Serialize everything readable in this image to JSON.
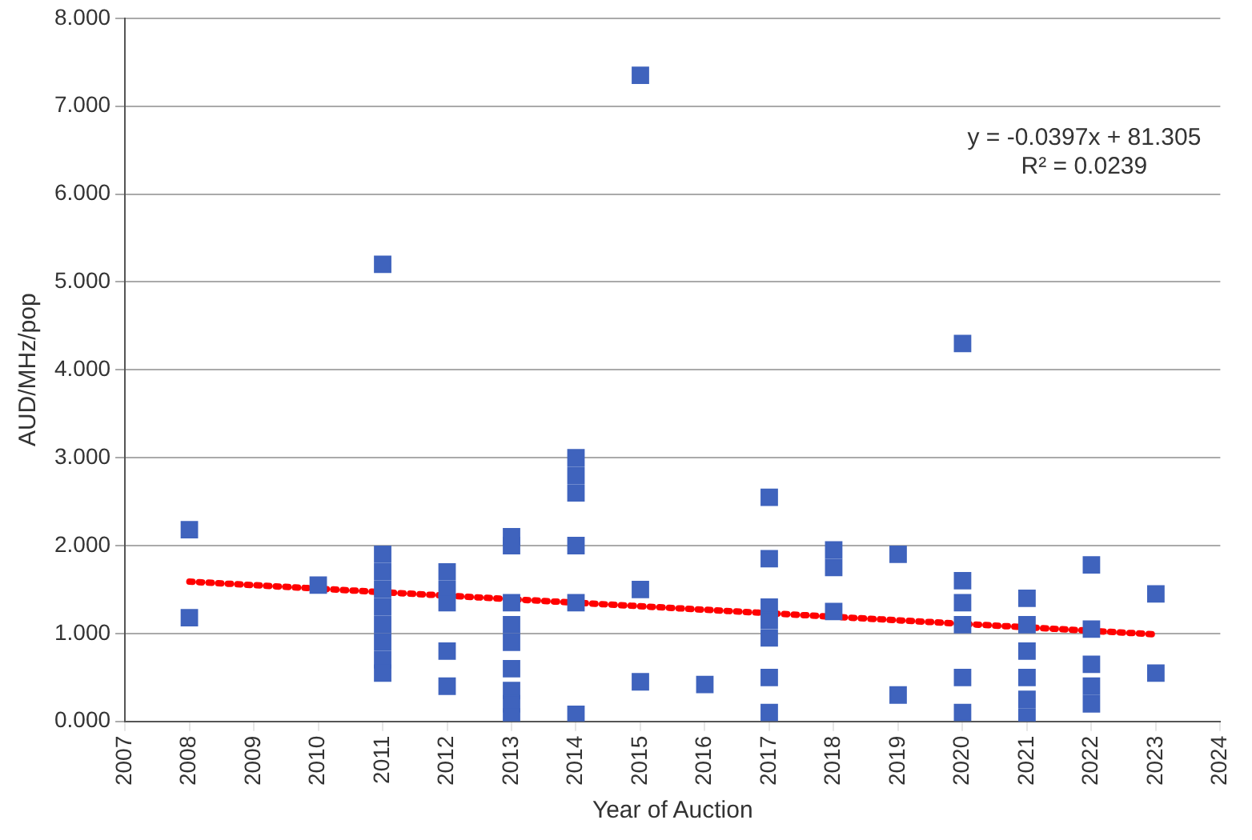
{
  "chart_data": {
    "type": "scatter",
    "xlabel": "Year of Auction",
    "ylabel": "AUD/MHz/pop",
    "xlim": [
      2007,
      2024
    ],
    "xticks": [
      2007,
      2008,
      2009,
      2010,
      2011,
      2012,
      2013,
      2014,
      2015,
      2016,
      2017,
      2018,
      2019,
      2020,
      2021,
      2022,
      2023,
      2024
    ],
    "ylim": [
      0,
      8
    ],
    "yticks": [
      {
        "value": 0,
        "label": "0.000"
      },
      {
        "value": 1,
        "label": "1.000"
      },
      {
        "value": 2,
        "label": "2.000"
      },
      {
        "value": 3,
        "label": "3.000"
      },
      {
        "value": 4,
        "label": "4.000"
      },
      {
        "value": 5,
        "label": "5.000"
      },
      {
        "value": 6,
        "label": "6.000"
      },
      {
        "value": 7,
        "label": "7.000"
      },
      {
        "value": 8,
        "label": "8.000"
      }
    ],
    "grid": "y",
    "legend": false,
    "marker": "square",
    "series": [
      {
        "type": "scatter",
        "color": "#3f63bd",
        "x": [
          2008,
          2008,
          2010,
          2011,
          2011,
          2011,
          2011,
          2011,
          2011,
          2011,
          2011,
          2011,
          2012,
          2012,
          2012,
          2012,
          2012,
          2013,
          2013,
          2013,
          2013,
          2013,
          2013,
          2013,
          2013,
          2013,
          2014,
          2014,
          2014,
          2014,
          2014,
          2014,
          2015,
          2015,
          2015,
          2016,
          2017,
          2017,
          2017,
          2017,
          2017,
          2017,
          2017,
          2018,
          2018,
          2018,
          2019,
          2019,
          2020,
          2020,
          2020,
          2020,
          2020,
          2020,
          2021,
          2021,
          2021,
          2021,
          2021,
          2021,
          2022,
          2022,
          2022,
          2022,
          2022,
          2023,
          2023
        ],
        "values": [
          2.18,
          1.18,
          1.55,
          5.2,
          1.9,
          1.7,
          1.5,
          1.3,
          1.1,
          0.9,
          0.7,
          0.55,
          1.7,
          1.5,
          1.35,
          0.8,
          0.4,
          2.1,
          2.0,
          1.35,
          1.1,
          0.9,
          0.6,
          0.35,
          0.2,
          0.05,
          3.0,
          2.8,
          2.6,
          2.0,
          1.35,
          0.08,
          7.35,
          1.5,
          0.45,
          0.42,
          2.55,
          1.85,
          1.3,
          1.15,
          0.95,
          0.5,
          0.1,
          1.95,
          1.75,
          1.25,
          1.9,
          0.3,
          4.3,
          1.6,
          1.35,
          1.1,
          0.5,
          0.1,
          1.4,
          1.1,
          0.8,
          0.5,
          0.25,
          0.05,
          1.78,
          1.05,
          0.65,
          0.4,
          0.2,
          1.45,
          0.55
        ]
      },
      {
        "type": "line",
        "color": "#ff0000",
        "line_style": "dotted",
        "marker": "none",
        "x": [
          2008,
          2023
        ],
        "values": [
          1.59,
          0.99
        ]
      }
    ],
    "annotations": [
      "y = -0.0397x + 81.305",
      "R² = 0.0239"
    ]
  }
}
